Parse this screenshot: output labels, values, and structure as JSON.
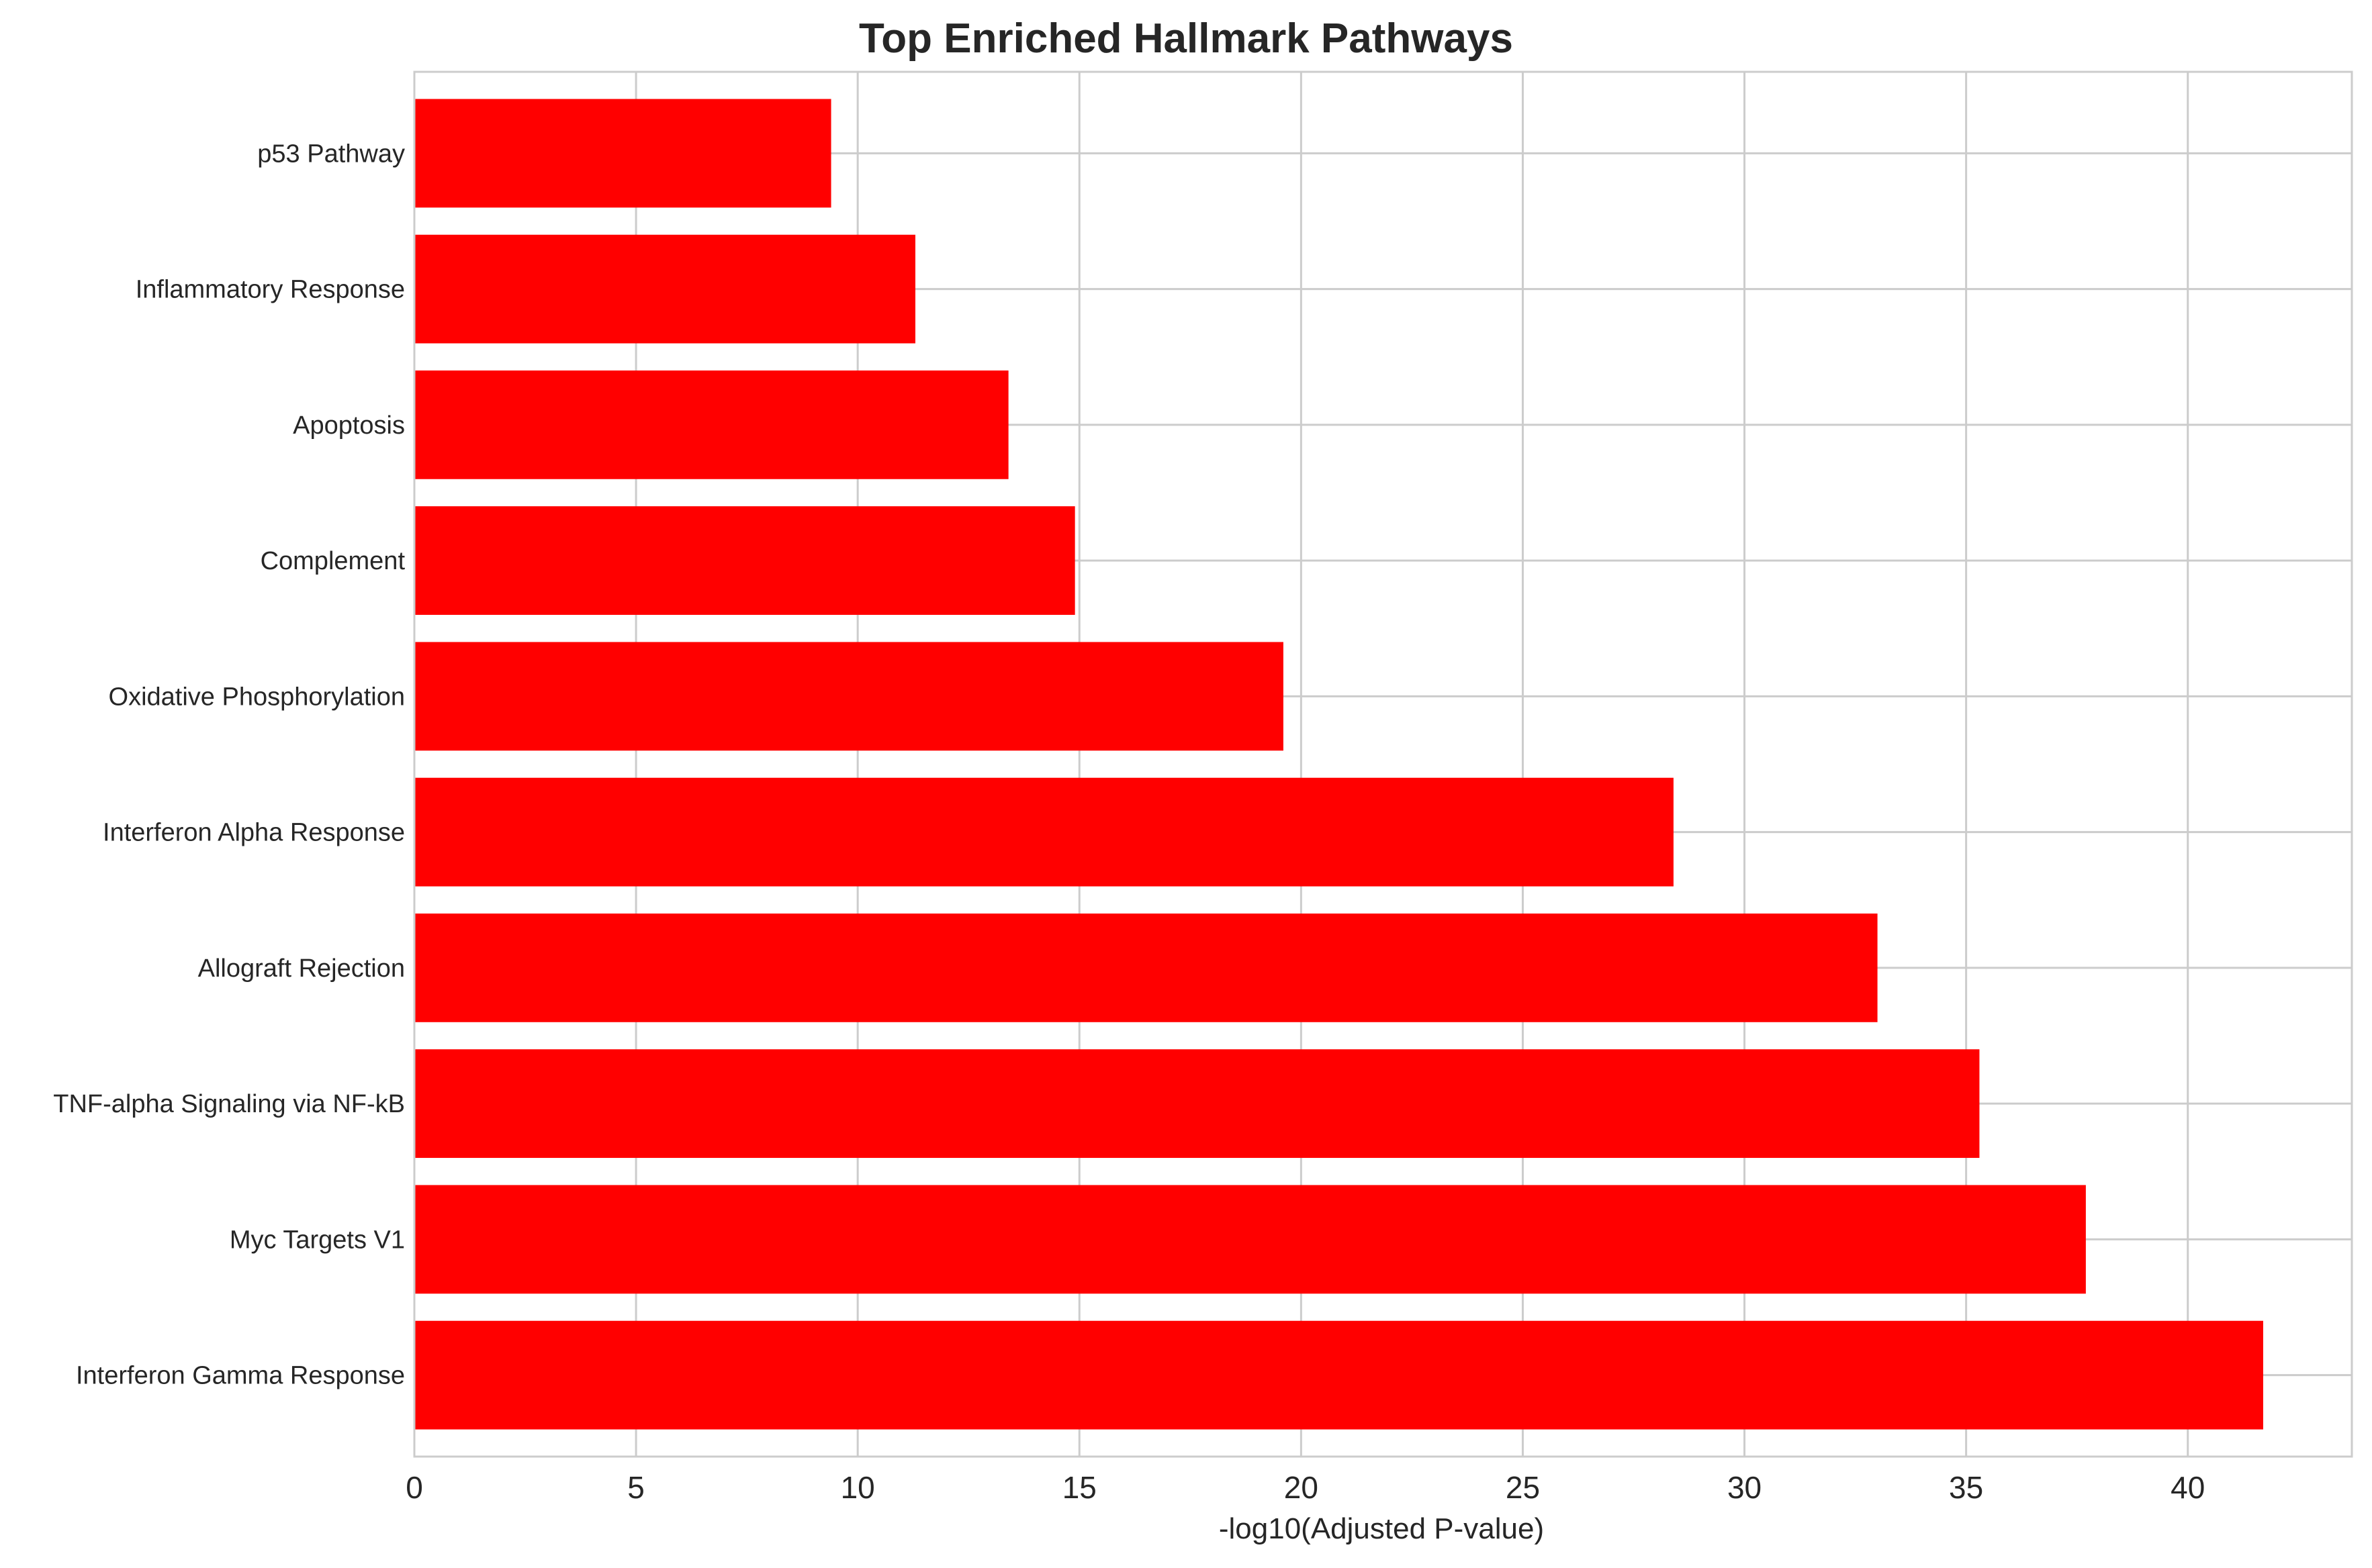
{
  "chart_data": {
    "type": "bar",
    "orientation": "horizontal",
    "title": "Top Enriched Hallmark Pathways",
    "xlabel": "-log10(Adjusted P-value)",
    "ylabel": "",
    "xlim": [
      0,
      43.7
    ],
    "xticks": [
      0,
      5,
      10,
      15,
      20,
      25,
      30,
      35,
      40
    ],
    "grid": true,
    "legend": "none",
    "categories": [
      "Interferon Gamma Response",
      "Myc Targets V1",
      "TNF-alpha Signaling via NF-kB",
      "Allograft Rejection",
      "Interferon Alpha Response",
      "Oxidative Phosphorylation",
      "Complement",
      "Apoptosis",
      "Inflammatory Response",
      "p53 Pathway"
    ],
    "values": [
      41.7,
      37.7,
      35.3,
      33.0,
      28.4,
      19.6,
      14.9,
      13.4,
      11.3,
      9.4
    ],
    "colors": {
      "bar": "#ff0000",
      "grid": "#cccccc",
      "spine": "#cccccc",
      "text": "#262626"
    }
  }
}
